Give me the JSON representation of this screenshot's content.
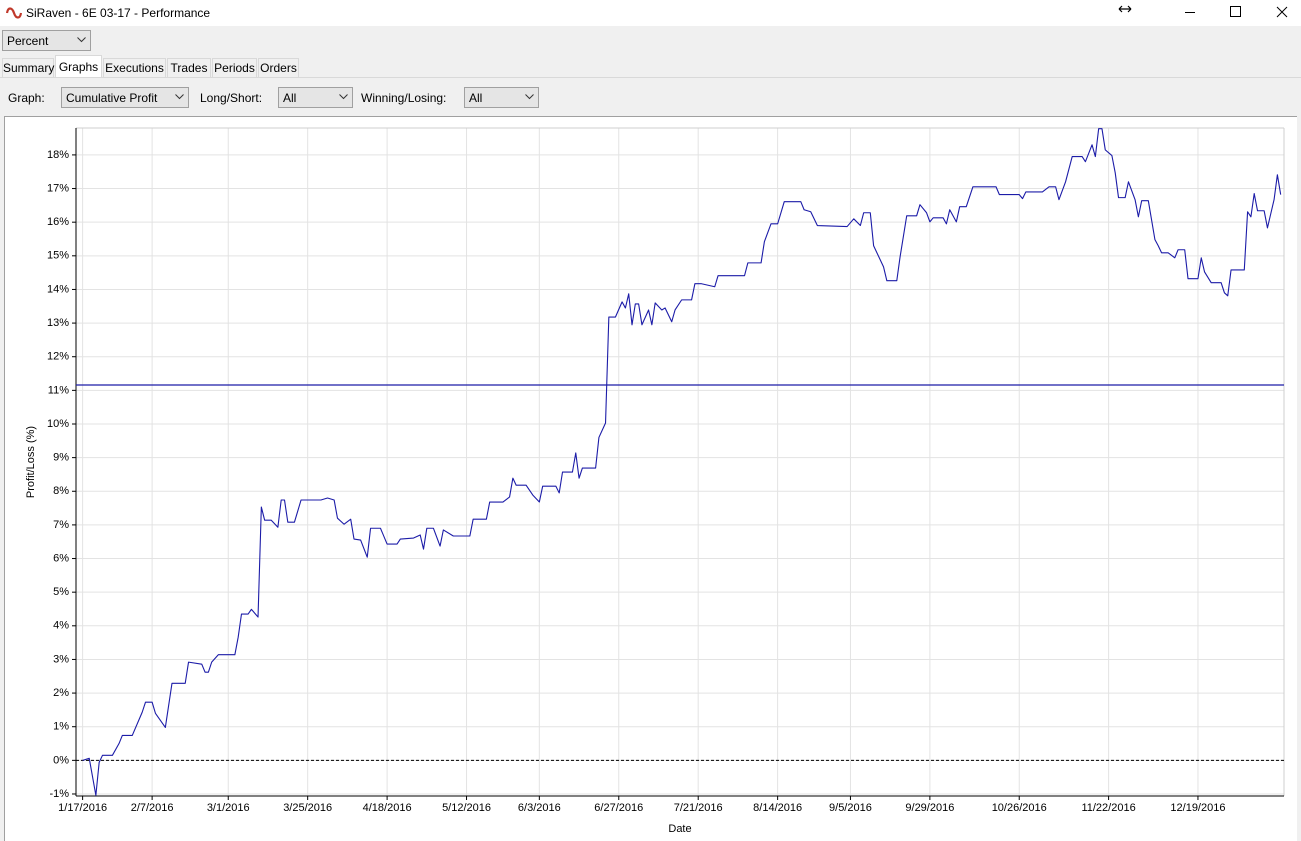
{
  "window": {
    "title": "SiRaven - 6E 03-17 - Performance"
  },
  "view_mode": "Percent",
  "tabs": [
    "Summary",
    "Graphs",
    "Executions",
    "Trades",
    "Periods",
    "Orders"
  ],
  "filters": {
    "graph_label": "Graph:",
    "graph_value": "Cumulative Profit",
    "long_short_label": "Long/Short:",
    "long_short_value": "All",
    "winning_losing_label": "Winning/Losing:",
    "winning_losing_value": "All"
  },
  "chart_data": {
    "type": "line",
    "x_label": "Date",
    "y_label": "Profit/Loss (%)",
    "color": "#1c1ca8",
    "x": [
      "1/17/2016",
      "1/19/2016",
      "1/21/2016",
      "1/22/2016",
      "1/23/2016",
      "1/26/2016",
      "1/28/2016",
      "1/29/2016",
      "2/1/2016",
      "2/4/2016",
      "2/5/2016",
      "2/7/2016",
      "2/8/2016",
      "2/11/2016",
      "2/13/2016",
      "2/17/2016",
      "2/18/2016",
      "2/22/2016",
      "2/23/2016",
      "2/24/2016",
      "2/25/2016",
      "2/27/2016",
      "3/3/2016",
      "3/4/2016",
      "3/5/2016",
      "3/7/2016",
      "3/8/2016",
      "3/10/2016",
      "3/11/2016",
      "3/12/2016",
      "3/14/2016",
      "3/16/2016",
      "3/17/2016",
      "3/18/2016",
      "3/19/2016",
      "3/21/2016",
      "3/23/2016",
      "3/29/2016",
      "3/31/2016",
      "4/2/2016",
      "4/3/2016",
      "4/5/2016",
      "4/7/2016",
      "4/8/2016",
      "4/10/2016",
      "4/12/2016",
      "4/13/2016",
      "4/16/2016",
      "4/18/2016",
      "4/21/2016",
      "4/22/2016",
      "4/26/2016",
      "4/28/2016",
      "4/29/2016",
      "4/30/2016",
      "5/2/2016",
      "5/4/2016",
      "5/5/2016",
      "5/8/2016",
      "5/13/2016",
      "5/14/2016",
      "5/18/2016",
      "5/19/2016",
      "5/23/2016",
      "5/25/2016",
      "5/26/2016",
      "5/27/2016",
      "5/30/2016",
      "6/1/2016",
      "6/3/2016",
      "6/4/2016",
      "6/8/2016",
      "6/9/2016",
      "6/10/2016",
      "6/13/2016",
      "6/14/2016",
      "6/15/2016",
      "6/16/2016",
      "6/20/2016",
      "6/21/2016",
      "6/23/2016",
      "6/24/2016",
      "6/26/2016",
      "6/28/2016",
      "6/29/2016",
      "6/30/2016",
      "7/1/2016",
      "7/2/2016",
      "7/3/2016",
      "7/4/2016",
      "7/6/2016",
      "7/7/2016",
      "7/8/2016",
      "7/10/2016",
      "7/11/2016",
      "7/13/2016",
      "7/14/2016",
      "7/16/2016",
      "7/19/2016",
      "7/20/2016",
      "7/22/2016",
      "7/26/2016",
      "7/27/2016",
      "8/4/2016",
      "8/5/2016",
      "8/9/2016",
      "8/10/2016",
      "8/12/2016",
      "8/14/2016",
      "8/16/2016",
      "8/21/2016",
      "8/22/2016",
      "8/24/2016",
      "8/26/2016",
      "9/4/2016",
      "9/6/2016",
      "9/8/2016",
      "9/9/2016",
      "9/11/2016",
      "9/12/2016",
      "9/15/2016",
      "9/16/2016",
      "9/19/2016",
      "9/20/2016",
      "9/22/2016",
      "9/25/2016",
      "9/26/2016",
      "9/28/2016",
      "9/29/2016",
      "9/30/2016",
      "10/3/2016",
      "10/4/2016",
      "10/5/2016",
      "10/7/2016",
      "10/8/2016",
      "10/10/2016",
      "10/12/2016",
      "10/19/2016",
      "10/20/2016",
      "10/26/2016",
      "10/27/2016",
      "10/28/2016",
      "11/2/2016",
      "11/4/2016",
      "11/6/2016",
      "11/7/2016",
      "11/9/2016",
      "11/11/2016",
      "11/14/2016",
      "11/15/2016",
      "11/17/2016",
      "11/18/2016",
      "11/19/2016",
      "11/20/2016",
      "11/21/2016",
      "11/23/2016",
      "11/24/2016",
      "11/25/2016",
      "11/27/2016",
      "11/28/2016",
      "11/30/2016",
      "12/1/2016",
      "12/2/2016",
      "12/4/2016",
      "12/6/2016",
      "12/7/2016",
      "12/8/2016",
      "12/10/2016",
      "12/12/2016",
      "12/13/2016",
      "12/15/2016",
      "12/16/2016",
      "12/19/2016",
      "12/20/2016",
      "12/21/2016",
      "12/23/2016",
      "12/26/2016",
      "12/27/2016",
      "12/28/2016",
      "12/29/2016",
      "1/2/2017",
      "1/3/2017",
      "1/4/2017",
      "1/5/2017",
      "1/6/2017",
      "1/8/2017",
      "1/9/2017",
      "1/11/2017",
      "1/12/2017",
      "1/13/2017"
    ],
    "values": [
      0,
      0.06,
      -1.04,
      -0.06,
      0.15,
      0.15,
      0.5,
      0.74,
      0.74,
      1.43,
      1.73,
      1.73,
      1.4,
      0.98,
      2.29,
      2.29,
      2.92,
      2.86,
      2.62,
      2.62,
      2.92,
      3.14,
      3.14,
      3.66,
      4.35,
      4.35,
      4.49,
      4.26,
      7.53,
      7.14,
      7.14,
      6.93,
      7.74,
      7.74,
      7.08,
      7.08,
      7.74,
      7.74,
      7.8,
      7.74,
      7.2,
      7.02,
      7.17,
      6.58,
      6.55,
      6.04,
      6.9,
      6.9,
      6.43,
      6.43,
      6.58,
      6.61,
      6.7,
      6.28,
      6.9,
      6.9,
      6.37,
      6.85,
      6.67,
      6.67,
      7.17,
      7.17,
      7.68,
      7.68,
      7.83,
      8.39,
      8.18,
      8.18,
      7.89,
      7.68,
      8.15,
      8.15,
      7.95,
      8.57,
      8.57,
      9.14,
      8.39,
      8.69,
      8.69,
      9.6,
      10.03,
      13.18,
      13.18,
      13.63,
      13.45,
      13.87,
      12.95,
      13.57,
      13.57,
      12.95,
      13.39,
      12.95,
      13.6,
      13.39,
      13.45,
      13.04,
      13.39,
      13.69,
      13.69,
      14.17,
      14.17,
      14.08,
      14.41,
      14.41,
      14.79,
      14.79,
      15.42,
      15.95,
      15.95,
      16.61,
      16.61,
      16.37,
      16.31,
      15.9,
      15.87,
      16.1,
      15.9,
      16.28,
      16.28,
      15.3,
      14.67,
      14.26,
      14.26,
      14.97,
      16.19,
      16.19,
      16.52,
      16.28,
      16.01,
      16.13,
      16.13,
      15.95,
      16.37,
      16.01,
      16.46,
      16.46,
      17.05,
      17.05,
      16.82,
      16.82,
      16.7,
      16.9,
      16.9,
      17.05,
      17.05,
      16.67,
      17.2,
      17.95,
      17.95,
      17.8,
      18.3,
      17.95,
      18.78,
      18.78,
      18.15,
      17.98,
      17.47,
      16.73,
      16.73,
      17.2,
      16.67,
      16.16,
      16.64,
      16.64,
      15.48,
      15.3,
      15.09,
      15.09,
      14.94,
      15.18,
      15.18,
      14.32,
      14.32,
      14.94,
      14.52,
      14.2,
      14.2,
      13.9,
      13.81,
      14.58,
      14.58,
      16.31,
      16.16,
      16.85,
      16.34,
      16.34,
      15.83,
      16.67,
      17.41,
      16.82
    ],
    "reference_line": {
      "value": 11.16,
      "color": "#1c1ca8"
    },
    "zero_line": true,
    "xlim": [
      "1/15/2016",
      "1/14/2017"
    ],
    "xticks": [
      "1/17/2016",
      "2/7/2016",
      "3/1/2016",
      "3/25/2016",
      "4/18/2016",
      "5/12/2016",
      "6/3/2016",
      "6/27/2016",
      "7/21/2016",
      "8/14/2016",
      "9/5/2016",
      "9/29/2016",
      "10/26/2016",
      "11/22/2016",
      "12/19/2016"
    ],
    "ylim": [
      -1.06,
      18.8
    ],
    "yticks": [
      {
        "value": -1,
        "label": "-1%"
      },
      {
        "value": 0,
        "label": "0%"
      },
      {
        "value": 1,
        "label": "1%"
      },
      {
        "value": 2,
        "label": "2%"
      },
      {
        "value": 3,
        "label": "3%"
      },
      {
        "value": 4,
        "label": "4%"
      },
      {
        "value": 5,
        "label": "5%"
      },
      {
        "value": 6,
        "label": "6%"
      },
      {
        "value": 7,
        "label": "7%"
      },
      {
        "value": 8,
        "label": "8%"
      },
      {
        "value": 9,
        "label": "9%"
      },
      {
        "value": 10,
        "label": "10%"
      },
      {
        "value": 11,
        "label": "11%"
      },
      {
        "value": 12,
        "label": "12%"
      },
      {
        "value": 13,
        "label": "13%"
      },
      {
        "value": 14,
        "label": "14%"
      },
      {
        "value": 15,
        "label": "15%"
      },
      {
        "value": 16,
        "label": "16%"
      },
      {
        "value": 17,
        "label": "17%"
      },
      {
        "value": 18,
        "label": "18%"
      }
    ],
    "grid": true
  }
}
